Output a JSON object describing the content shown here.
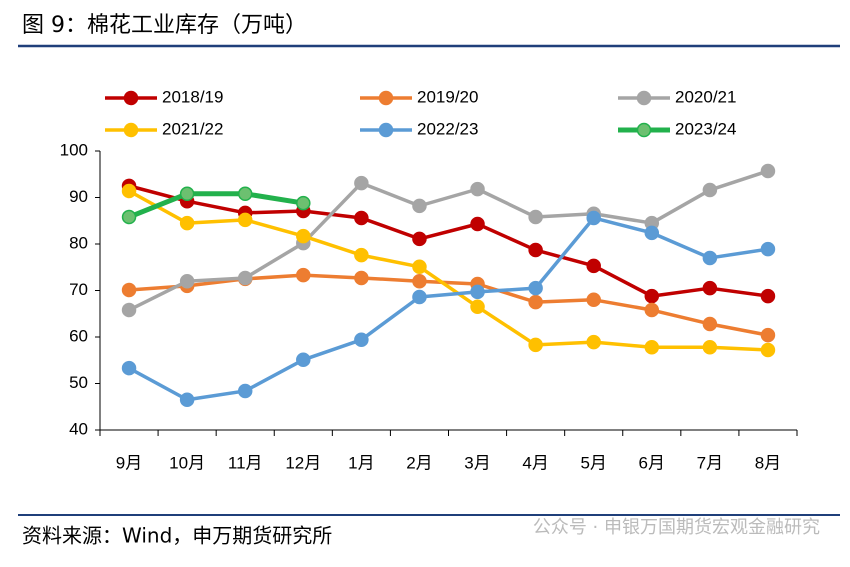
{
  "chart_data": {
    "type": "line",
    "title": "图 9：棉花工业库存（万吨）",
    "source": "资料来源：Wind，申万期货研究所",
    "watermark": "公众号 · 申银万国期货宏观金融研究",
    "categories": [
      "9月",
      "10月",
      "11月",
      "12月",
      "1月",
      "2月",
      "3月",
      "4月",
      "5月",
      "6月",
      "7月",
      "8月"
    ],
    "ylim": [
      40,
      100
    ],
    "yticks": [
      40,
      50,
      60,
      70,
      80,
      90,
      100
    ],
    "grid": false,
    "series": [
      {
        "name": "2018/19",
        "color": "#c00000",
        "values": [
          92.5,
          89.2,
          86.7,
          87.1,
          85.6,
          81.1,
          84.3,
          78.7,
          75.3,
          68.8,
          70.5,
          68.8
        ]
      },
      {
        "name": "2019/20",
        "color": "#ed7d31",
        "values": [
          70.1,
          71,
          72.5,
          73.3,
          72.7,
          72,
          71.4,
          67.5,
          68,
          65.8,
          62.8,
          60.4
        ]
      },
      {
        "name": "2020/21",
        "color": "#a5a5a5",
        "values": [
          65.8,
          72,
          72.7,
          80.2,
          93.1,
          88.2,
          91.8,
          85.8,
          86.5,
          84.5,
          91.6,
          95.7
        ]
      },
      {
        "name": "2021/22",
        "color": "#ffc000",
        "values": [
          91.4,
          84.5,
          85.2,
          81.7,
          77.6,
          75.1,
          66.5,
          58.3,
          58.9,
          57.8,
          57.8,
          57.2
        ]
      },
      {
        "name": "2022/23",
        "color": "#5b9bd5",
        "values": [
          53.3,
          46.5,
          48.4,
          55.1,
          59.4,
          68.6,
          69.7,
          70.5,
          85.6,
          82.4,
          77,
          78.9
        ]
      },
      {
        "name": "2023/24",
        "color": "#22b14c",
        "values": [
          85.8,
          90.8,
          90.8,
          88.8,
          null,
          null,
          null,
          null,
          null,
          null,
          null,
          null
        ]
      }
    ]
  }
}
